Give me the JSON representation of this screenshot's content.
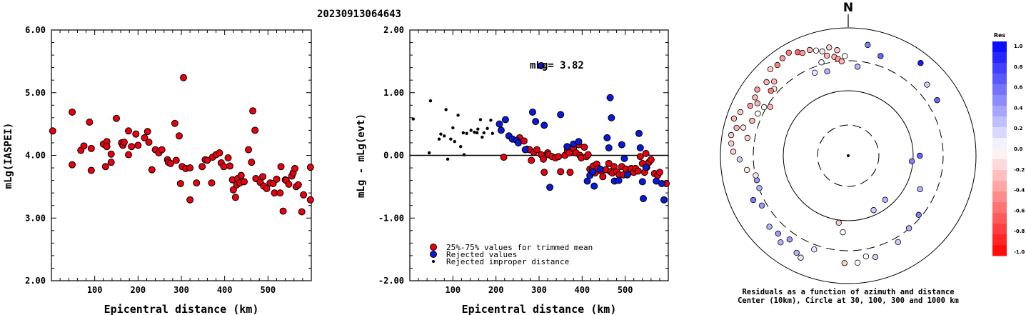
{
  "title": "20230913064643",
  "chart_data": [
    {
      "type": "scatter",
      "id": "left",
      "xlabel": "Epicentral distance (km)",
      "ylabel": "mLg(IASPEI)",
      "xlim": [
        0,
        600
      ],
      "ylim": [
        2.0,
        6.0
      ],
      "xticks": [
        "100",
        "200",
        "300",
        "400",
        "500"
      ],
      "yticks": [
        "2.00",
        "3.00",
        "4.00",
        "5.00",
        "6.00"
      ],
      "points": [
        [
          3,
          4.39
        ],
        [
          48,
          4.69
        ],
        [
          48,
          3.85
        ],
        [
          68,
          4.08
        ],
        [
          75,
          4.15
        ],
        [
          88,
          4.53
        ],
        [
          92,
          4.11
        ],
        [
          92,
          3.76
        ],
        [
          120,
          4.18
        ],
        [
          125,
          3.82
        ],
        [
          128,
          4.22
        ],
        [
          128,
          4.14
        ],
        [
          138,
          3.89
        ],
        [
          138,
          4.02
        ],
        [
          150,
          4.59
        ],
        [
          162,
          4.2
        ],
        [
          165,
          4.16
        ],
        [
          168,
          4.21
        ],
        [
          178,
          4.39
        ],
        [
          178,
          4.01
        ],
        [
          185,
          4.14
        ],
        [
          195,
          4.34
        ],
        [
          200,
          4.16
        ],
        [
          215,
          4.28
        ],
        [
          222,
          4.38
        ],
        [
          225,
          4.21
        ],
        [
          232,
          3.77
        ],
        [
          240,
          4.09
        ],
        [
          248,
          4.04
        ],
        [
          255,
          4.09
        ],
        [
          268,
          3.93
        ],
        [
          270,
          3.89
        ],
        [
          275,
          3.87
        ],
        [
          285,
          4.51
        ],
        [
          288,
          3.92
        ],
        [
          295,
          4.31
        ],
        [
          298,
          3.55
        ],
        [
          302,
          3.82
        ],
        [
          305,
          5.24
        ],
        [
          310,
          3.79
        ],
        [
          320,
          3.29
        ],
        [
          320,
          3.8
        ],
        [
          335,
          3.56
        ],
        [
          348,
          3.82
        ],
        [
          355,
          3.93
        ],
        [
          360,
          3.92
        ],
        [
          370,
          3.56
        ],
        [
          372,
          3.97
        ],
        [
          380,
          4.01
        ],
        [
          388,
          4.04
        ],
        [
          392,
          3.88
        ],
        [
          398,
          3.82
        ],
        [
          408,
          3.96
        ],
        [
          412,
          3.83
        ],
        [
          418,
          3.61
        ],
        [
          420,
          3.45
        ],
        [
          425,
          3.33
        ],
        [
          428,
          3.53
        ],
        [
          430,
          3.63
        ],
        [
          435,
          3.56
        ],
        [
          438,
          3.68
        ],
        [
          445,
          3.58
        ],
        [
          455,
          4.09
        ],
        [
          462,
          3.89
        ],
        [
          465,
          4.71
        ],
        [
          470,
          4.4
        ],
        [
          472,
          3.63
        ],
        [
          482,
          3.57
        ],
        [
          488,
          3.66
        ],
        [
          490,
          3.51
        ],
        [
          497,
          3.47
        ],
        [
          505,
          3.56
        ],
        [
          512,
          3.55
        ],
        [
          515,
          3.4
        ],
        [
          520,
          3.62
        ],
        [
          528,
          3.4
        ],
        [
          530,
          3.82
        ],
        [
          535,
          3.11
        ],
        [
          540,
          3.61
        ],
        [
          542,
          3.6
        ],
        [
          548,
          3.54
        ],
        [
          555,
          3.67
        ],
        [
          558,
          3.72
        ],
        [
          562,
          3.79
        ],
        [
          565,
          3.5
        ],
        [
          570,
          3.53
        ],
        [
          578,
          3.1
        ],
        [
          582,
          3.37
        ],
        [
          598,
          3.81
        ],
        [
          598,
          3.29
        ]
      ]
    },
    {
      "type": "scatter",
      "id": "middle",
      "xlabel": "Epicentral distance (km)",
      "ylabel": "mLg - mLg(evt)",
      "xlim": [
        0,
        600
      ],
      "ylim": [
        -2.0,
        2.0
      ],
      "xticks": [
        "100",
        "200",
        "300",
        "400",
        "500"
      ],
      "yticks": [
        "-2.00",
        "-1.00",
        "0.00",
        "1.00",
        "2.00"
      ],
      "annotation": "mLg= 3.82",
      "legend": [
        {
          "label": "25%-75% values for trimmed mean",
          "color": "#e8000f",
          "style": "circle"
        },
        {
          "label": "Rejected values",
          "color": "#0a18d8",
          "style": "circle"
        },
        {
          "label": "Rejected improper distance",
          "color": "#000000",
          "style": "dot"
        }
      ],
      "legend_position": "bottom-left",
      "red_points": [
        [
          218,
          -0.03
        ],
        [
          255,
          0.28
        ],
        [
          265,
          0.23
        ],
        [
          272,
          0.1
        ],
        [
          278,
          0.09
        ],
        [
          282,
          -0.08
        ],
        [
          288,
          0.05
        ],
        [
          295,
          0.09
        ],
        [
          305,
          0.01
        ],
        [
          310,
          -0.06
        ],
        [
          312,
          -0.27
        ],
        [
          320,
          0.04
        ],
        [
          322,
          0.01
        ],
        [
          330,
          -0.02
        ],
        [
          338,
          -0.04
        ],
        [
          345,
          -0.02
        ],
        [
          350,
          -0.26
        ],
        [
          360,
          0.0
        ],
        [
          366,
          0.08
        ],
        [
          370,
          0.04
        ],
        [
          372,
          -0.27
        ],
        [
          380,
          0.12
        ],
        [
          386,
          0.04
        ],
        [
          392,
          0.17
        ],
        [
          395,
          0.0
        ],
        [
          398,
          -0.04
        ],
        [
          405,
          0.13
        ],
        [
          410,
          -0.02
        ],
        [
          414,
          0.01
        ],
        [
          418,
          -0.22
        ],
        [
          424,
          -0.22
        ],
        [
          426,
          -0.17
        ],
        [
          430,
          -0.28
        ],
        [
          434,
          -0.14
        ],
        [
          437,
          -0.21
        ],
        [
          444,
          -0.25
        ],
        [
          448,
          -0.34
        ],
        [
          455,
          -0.23
        ],
        [
          462,
          -0.13
        ],
        [
          466,
          -0.26
        ],
        [
          470,
          -0.28
        ],
        [
          474,
          -0.18
        ],
        [
          480,
          -0.26
        ],
        [
          486,
          -0.31
        ],
        [
          492,
          -0.18
        ],
        [
          496,
          -0.31
        ],
        [
          502,
          -0.22
        ],
        [
          510,
          -0.27
        ],
        [
          514,
          -0.21
        ],
        [
          520,
          -0.27
        ],
        [
          524,
          -0.21
        ],
        [
          530,
          -0.25
        ],
        [
          535,
          -0.02
        ],
        [
          540,
          -0.13
        ],
        [
          545,
          -0.27
        ],
        [
          548,
          0.03
        ],
        [
          550,
          -0.19
        ],
        [
          555,
          -0.11
        ],
        [
          560,
          -0.07
        ],
        [
          568,
          -0.29
        ],
        [
          575,
          -0.32
        ],
        [
          580,
          -0.27
        ],
        [
          595,
          -0.45
        ]
      ],
      "blue_points": [
        [
          208,
          0.5
        ],
        [
          212,
          0.4
        ],
        [
          222,
          0.57
        ],
        [
          230,
          0.31
        ],
        [
          238,
          0.26
        ],
        [
          248,
          0.24
        ],
        [
          252,
          0.2
        ],
        [
          268,
          0.09
        ],
        [
          285,
          0.69
        ],
        [
          292,
          0.54
        ],
        [
          305,
          1.43
        ],
        [
          312,
          0.48
        ],
        [
          325,
          -0.51
        ],
        [
          350,
          0.65
        ],
        [
          365,
          0.14
        ],
        [
          380,
          0.18
        ],
        [
          392,
          0.22
        ],
        [
          412,
          -0.41
        ],
        [
          418,
          -0.32
        ],
        [
          425,
          -0.26
        ],
        [
          428,
          -0.49
        ],
        [
          442,
          -0.22
        ],
        [
          458,
          0.28
        ],
        [
          462,
          0.12
        ],
        [
          465,
          0.92
        ],
        [
          468,
          0.6
        ],
        [
          475,
          -0.41
        ],
        [
          485,
          -0.4
        ],
        [
          492,
          0.17
        ],
        [
          498,
          -0.05
        ],
        [
          505,
          -0.31
        ],
        [
          532,
          0.35
        ],
        [
          535,
          0.12
        ],
        [
          540,
          -0.42
        ],
        [
          542,
          -0.69
        ],
        [
          548,
          -0.19
        ],
        [
          572,
          -0.41
        ],
        [
          585,
          -0.45
        ],
        [
          590,
          -0.71
        ]
      ],
      "black_points": [
        [
          8,
          0.58
        ],
        [
          45,
          0.04
        ],
        [
          48,
          0.87
        ],
        [
          68,
          0.26
        ],
        [
          72,
          0.34
        ],
        [
          80,
          0.31
        ],
        [
          84,
          0.73
        ],
        [
          88,
          -0.06
        ],
        [
          95,
          0.26
        ],
        [
          100,
          0.44
        ],
        [
          104,
          0.22
        ],
        [
          112,
          0.64
        ],
        [
          118,
          0.14
        ],
        [
          124,
          0.36
        ],
        [
          126,
          0.01
        ],
        [
          132,
          0.35
        ],
        [
          142,
          0.4
        ],
        [
          150,
          0.37
        ],
        [
          156,
          0.36
        ],
        [
          158,
          0.42
        ],
        [
          164,
          0.57
        ],
        [
          168,
          0.29
        ],
        [
          172,
          0.36
        ],
        [
          180,
          0.43
        ],
        [
          188,
          0.56
        ],
        [
          192,
          0.35
        ]
      ]
    },
    {
      "type": "polar",
      "id": "right",
      "north_label": "N",
      "caption_line1": "Residuals as a function of azimuth and distance",
      "caption_line2": "Center (10km), Circle at 30, 100, 300 and 1000 km",
      "colorbar_title": "Res",
      "colorbar_ticks": [
        "1.0",
        "0.8",
        "0.6",
        "0.4",
        "0.2",
        "0.0",
        "-0.2",
        "-0.4",
        "-0.6",
        "-0.8",
        "-1.0"
      ],
      "colorbar_range": [
        -1.0,
        1.0
      ],
      "colors": {
        "positive": "#0000ff",
        "zero": "#ffffff",
        "negative": "#ff0000"
      },
      "points": [
        [
          188,
          0.53,
          -0.2
        ],
        [
          184,
          0.6,
          0.0
        ],
        [
          90,
          0.56,
          0.6
        ],
        [
          95,
          0.5,
          0.5
        ],
        [
          115,
          0.62,
          0.3
        ],
        [
          130,
          0.72,
          0.5
        ],
        [
          140,
          0.74,
          0.3
        ],
        [
          150,
          0.78,
          0.2
        ],
        [
          165,
          0.82,
          0.2
        ],
        [
          170,
          0.8,
          0.0
        ],
        [
          175,
          0.84,
          0.0
        ],
        [
          182,
          0.84,
          -0.2
        ],
        [
          200,
          0.78,
          0.1
        ],
        [
          205,
          0.88,
          0.1
        ],
        [
          208,
          0.86,
          0.3
        ],
        [
          215,
          0.8,
          0.4
        ],
        [
          218,
          0.86,
          0.3
        ],
        [
          222,
          0.82,
          0.4
        ],
        [
          228,
          0.83,
          0.3
        ],
        [
          240,
          0.78,
          0.4
        ],
        [
          245,
          0.82,
          0.5
        ],
        [
          250,
          0.74,
          0.3
        ],
        [
          255,
          0.74,
          0.4
        ],
        [
          258,
          0.74,
          -0.1
        ],
        [
          262,
          0.8,
          -0.1
        ],
        [
          268,
          0.85,
          0.2
        ],
        [
          272,
          0.9,
          -0.2
        ],
        [
          276,
          0.92,
          -0.2
        ],
        [
          280,
          0.93,
          -0.2
        ],
        [
          284,
          0.9,
          -0.3
        ],
        [
          288,
          0.94,
          -0.3
        ],
        [
          292,
          0.91,
          -0.2
        ],
        [
          297,
          0.86,
          -0.4
        ],
        [
          302,
          0.86,
          -0.3
        ],
        [
          306,
          0.88,
          -0.4
        ],
        [
          312,
          0.86,
          -0.3
        ],
        [
          318,
          0.91,
          -0.2
        ],
        [
          322,
          0.9,
          -0.5
        ],
        [
          326,
          0.92,
          -0.4
        ],
        [
          330,
          0.93,
          -0.5
        ],
        [
          334,
          0.9,
          -0.6
        ],
        [
          336,
          0.88,
          -0.4
        ],
        [
          340,
          0.88,
          -0.3
        ],
        [
          343,
          0.86,
          0.0
        ],
        [
          346,
          0.84,
          -0.1
        ],
        [
          350,
          0.86,
          -0.2
        ],
        [
          354,
          0.83,
          -0.2
        ],
        [
          358,
          0.78,
          0.0
        ],
        [
          6,
          0.7,
          0.3
        ],
        [
          10,
          0.88,
          0.5
        ],
        [
          18,
          0.82,
          0.6
        ],
        [
          38,
          0.92,
          0.9
        ],
        [
          48,
          0.83,
          0.2
        ],
        [
          58,
          0.82,
          0.6
        ],
        [
          346,
          0.68,
          0.3
        ],
        [
          338,
          0.7,
          0.1
        ],
        [
          312,
          0.78,
          -0.1
        ],
        [
          302,
          0.72,
          -0.3
        ],
        [
          280,
          0.8,
          -0.2
        ],
        [
          285,
          0.85,
          -0.1
        ],
        [
          290,
          0.8,
          -0.3
        ],
        [
          295,
          0.78,
          0.0
        ],
        [
          300,
          0.76,
          0.0
        ],
        [
          310,
          0.79,
          -0.5
        ],
        [
          315,
          0.82,
          -0.3
        ],
        [
          348,
          0.8,
          -0.3
        ],
        [
          352,
          0.78,
          -0.3
        ],
        [
          354,
          0.76,
          -0.4
        ],
        [
          356,
          0.74,
          -0.3
        ],
        [
          300,
          0.82,
          -0.3
        ],
        [
          344,
          0.76,
          0.0
        ],
        [
          155,
          0.47,
          0.2
        ],
        [
          140,
          0.45,
          0.3
        ]
      ]
    }
  ]
}
